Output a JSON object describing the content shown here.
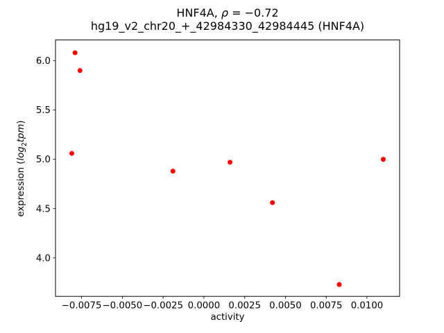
{
  "figure": {
    "title": {
      "line1_prefix": "HNF4A, ",
      "line1_rho": "ρ",
      "line1_suffix": " = −0.72",
      "line2": "hg19_v2_chr20_+_42984330_42984445 (HNF4A)"
    },
    "ylabel": {
      "prefix": "expression (",
      "log": "log",
      "sub": "2",
      "tpm": "tpm",
      "suffix": ")"
    },
    "xlabel": "activity"
  },
  "chart_data": {
    "type": "scatter",
    "title": "HNF4A, ρ = −0.72\nhg19_v2_chr20_+_42984330_42984445 (HNF4A)",
    "xlabel": "activity",
    "ylabel": "expression (log2tpm)",
    "correlation_rho": -0.72,
    "marker": {
      "shape": "circle",
      "color": "#ff0000",
      "radius_px": 3.5
    },
    "points": [
      {
        "x": -0.0079,
        "y": 6.08
      },
      {
        "x": -0.0076,
        "y": 5.9
      },
      {
        "x": -0.0081,
        "y": 5.06
      },
      {
        "x": -0.0019,
        "y": 4.88
      },
      {
        "x": 0.0016,
        "y": 4.97
      },
      {
        "x": 0.0042,
        "y": 4.56
      },
      {
        "x": 0.0083,
        "y": 3.73
      },
      {
        "x": 0.011,
        "y": 5.0
      }
    ],
    "xlim": [
      -0.0091,
      0.012
    ],
    "ylim": [
      3.61,
      6.21
    ],
    "xticks": [
      {
        "value": -0.0075,
        "label": "−0.0075"
      },
      {
        "value": -0.005,
        "label": "−0.0050"
      },
      {
        "value": -0.0025,
        "label": "−0.0025"
      },
      {
        "value": 0.0,
        "label": "0.0000"
      },
      {
        "value": 0.0025,
        "label": "0.0025"
      },
      {
        "value": 0.005,
        "label": "0.0050"
      },
      {
        "value": 0.0075,
        "label": "0.0075"
      },
      {
        "value": 0.01,
        "label": "0.0100"
      }
    ],
    "yticks": [
      {
        "value": 4.0,
        "label": "4.0"
      },
      {
        "value": 4.5,
        "label": "4.5"
      },
      {
        "value": 5.0,
        "label": "5.0"
      },
      {
        "value": 5.5,
        "label": "5.5"
      },
      {
        "value": 6.0,
        "label": "6.0"
      }
    ],
    "grid": false,
    "legend": null,
    "axes_color": "#000000",
    "background_color": "#ffffff"
  }
}
